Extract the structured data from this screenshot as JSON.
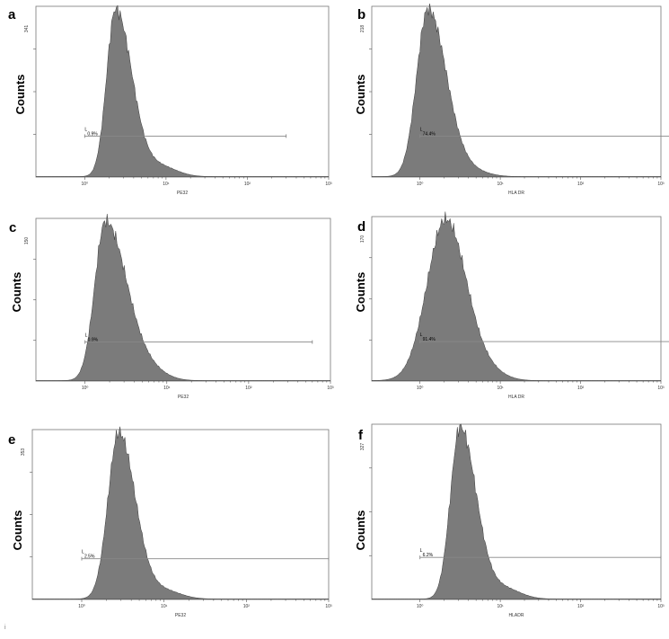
{
  "chart_data": [
    {
      "type": "area",
      "panel": "a",
      "ylabel": "Counts",
      "xlabel": "PE32",
      "ymax_label": "341",
      "x_tick_labels": [
        "10⁰",
        "10¹",
        "10²",
        "10³"
      ],
      "gate": {
        "letter": "L",
        "label": "0.9%",
        "from": 1.0,
        "to": 300
      },
      "peak_log": 0.38,
      "sigma_left": 0.11,
      "sigma_right": 0.2,
      "tail_weight": 0.06
    },
    {
      "type": "area",
      "panel": "b",
      "ylabel": "Counts",
      "xlabel": "HLA DR",
      "ymax_label": "218",
      "x_tick_labels": [
        "10⁰",
        "10¹",
        "10²",
        "10³"
      ],
      "gate": {
        "letter": "L",
        "label": "74.4%",
        "from": 1.0,
        "to": 3000
      },
      "peak_log": 0.1,
      "sigma_left": 0.14,
      "sigma_right": 0.23,
      "tail_weight": 0.03
    },
    {
      "type": "area",
      "panel": "c",
      "ylabel": "Counts",
      "xlabel": "PE32",
      "ymax_label": "150",
      "x_tick_labels": [
        "10⁰",
        "10¹",
        "10²",
        "10³"
      ],
      "gate": {
        "letter": "L",
        "label": "0.9%",
        "from": 1.0,
        "to": 600
      },
      "peak_log": 0.25,
      "sigma_left": 0.13,
      "sigma_right": 0.26,
      "tail_weight": 0.05
    },
    {
      "type": "area",
      "panel": "d",
      "ylabel": "Counts",
      "xlabel": "HLA DR",
      "ymax_label": "170",
      "x_tick_labels": [
        "10⁰",
        "10¹",
        "10²",
        "10³"
      ],
      "gate": {
        "letter": "L",
        "label": "91.4%",
        "from": 1.0,
        "to": 2000
      },
      "peak_log": 0.32,
      "sigma_left": 0.23,
      "sigma_right": 0.26,
      "tail_weight": 0.04
    },
    {
      "type": "area",
      "panel": "e",
      "ylabel": "Counts",
      "xlabel": "PE32",
      "ymax_label": "353",
      "x_tick_labels": [
        "10⁰",
        "10¹",
        "10²",
        "10³"
      ],
      "gate": {
        "letter": "L",
        "label": "2.5%",
        "from": 1.0,
        "to": 1000
      },
      "peak_log": 0.45,
      "sigma_left": 0.13,
      "sigma_right": 0.2,
      "tail_weight": 0.05
    },
    {
      "type": "area",
      "panel": "f",
      "ylabel": "Counts",
      "xlabel": "HLADR",
      "ymax_label": "327",
      "x_tick_labels": [
        "10⁰",
        "10¹",
        "10²",
        "10³"
      ],
      "gate": {
        "letter": "L",
        "label": "6.2%",
        "from": 1.0,
        "to": 1000
      },
      "peak_log": 0.5,
      "sigma_left": 0.12,
      "sigma_right": 0.2,
      "tail_weight": 0.06
    }
  ],
  "corner_mark": "i"
}
